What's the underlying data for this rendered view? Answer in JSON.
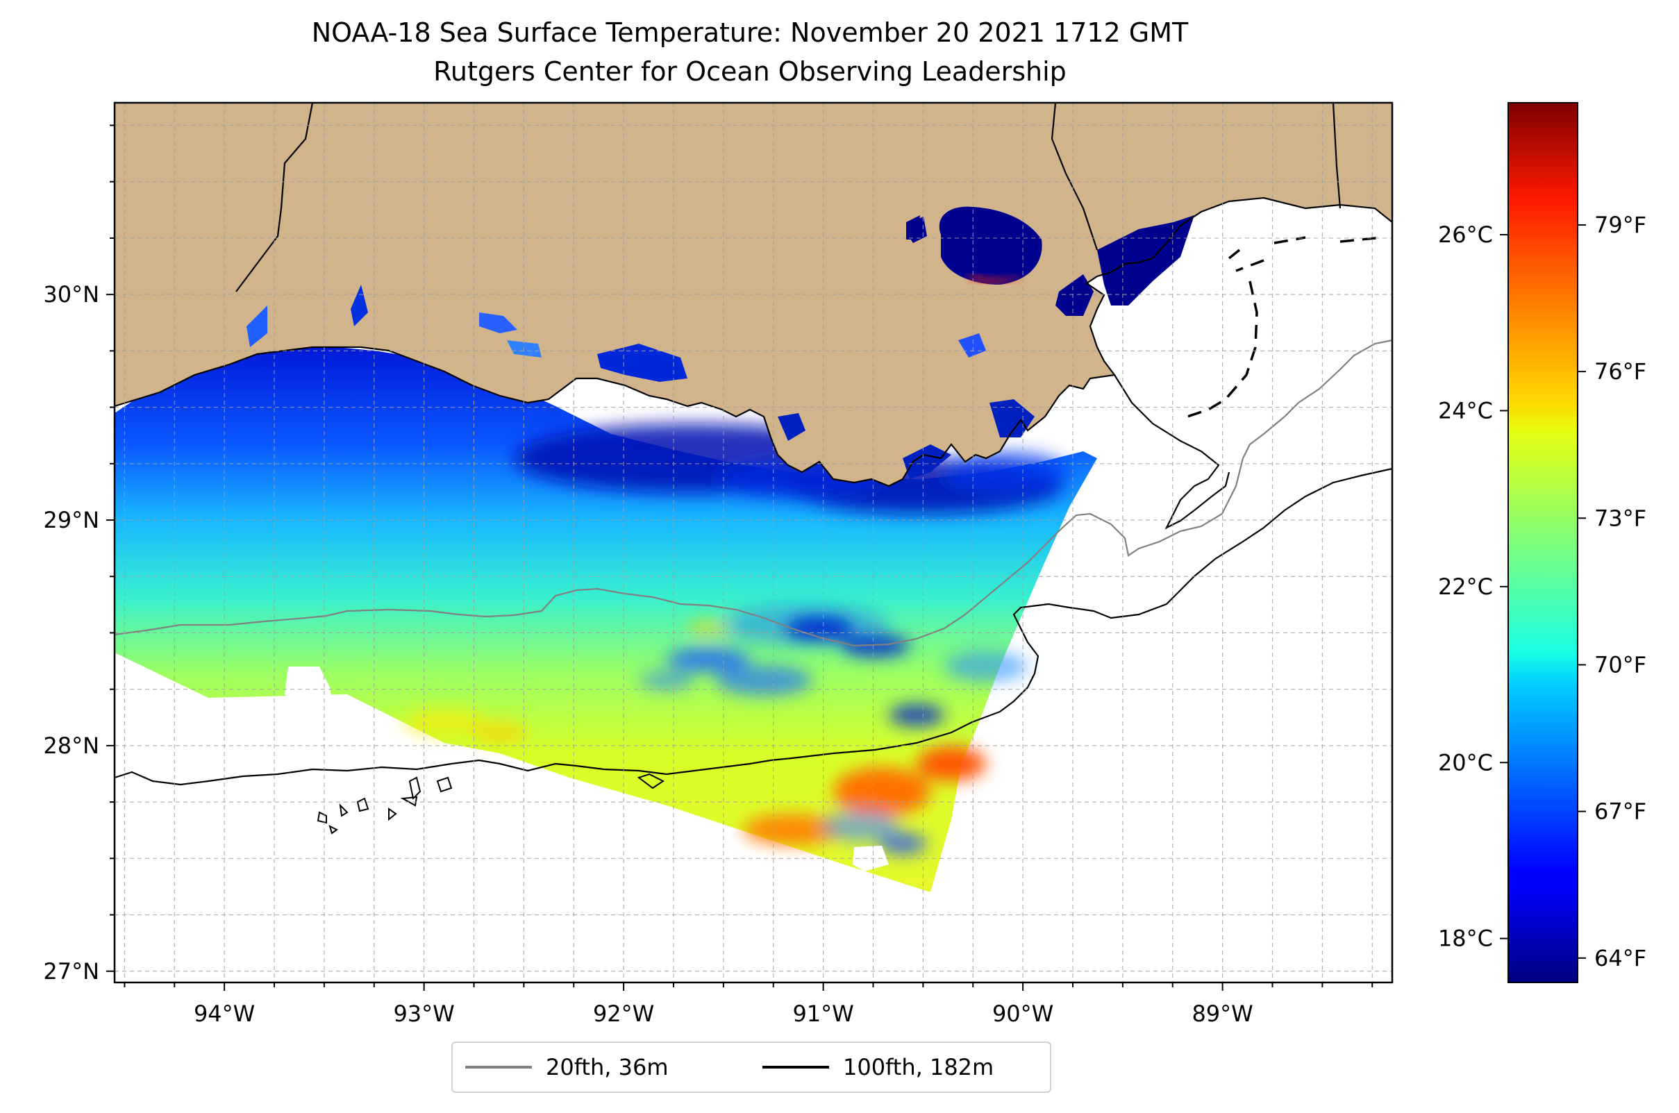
{
  "title": {
    "line1": "NOAA-18 Sea Surface Temperature: November 20 2021 1712 GMT",
    "line2": "Rutgers Center for Ocean Observing Leadership"
  },
  "map": {
    "lon_range": [
      -94.55,
      -88.15
    ],
    "lat_range": [
      26.95,
      30.85
    ],
    "x_ticks": [
      {
        "lon": -94,
        "label": "94°W"
      },
      {
        "lon": -93,
        "label": "93°W"
      },
      {
        "lon": -92,
        "label": "92°W"
      },
      {
        "lon": -91,
        "label": "91°W"
      },
      {
        "lon": -90,
        "label": "90°W"
      },
      {
        "lon": -89,
        "label": "89°W"
      }
    ],
    "y_ticks": [
      {
        "lat": 27,
        "label": "27°N"
      },
      {
        "lat": 28,
        "label": "28°N"
      },
      {
        "lat": 29,
        "label": "29°N"
      },
      {
        "lat": 30,
        "label": "30°N"
      }
    ],
    "gridlines": "dashed, every 0.25°",
    "land_color": "#d2b48c",
    "ocean_color": "#ffffff"
  },
  "colorbar": {
    "colormap": "jet",
    "celsius_ticks": [
      {
        "value": 18,
        "label": "18°C"
      },
      {
        "value": 20,
        "label": "20°C"
      },
      {
        "value": 22,
        "label": "22°C"
      },
      {
        "value": 24,
        "label": "24°C"
      },
      {
        "value": 26,
        "label": "26°C"
      }
    ],
    "fahrenheit_ticks": [
      {
        "value": 64,
        "label": "64°F"
      },
      {
        "value": 67,
        "label": "67°F"
      },
      {
        "value": 70,
        "label": "70°F"
      },
      {
        "value": 73,
        "label": "73°F"
      },
      {
        "value": 76,
        "label": "76°F"
      },
      {
        "value": 79,
        "label": "79°F"
      }
    ],
    "range_f": [
      63.5,
      81.5
    ]
  },
  "legend": {
    "items": [
      {
        "label": "20fth, 36m",
        "color": "#808080"
      },
      {
        "label": "100fth, 182m",
        "color": "#000000"
      }
    ]
  }
}
